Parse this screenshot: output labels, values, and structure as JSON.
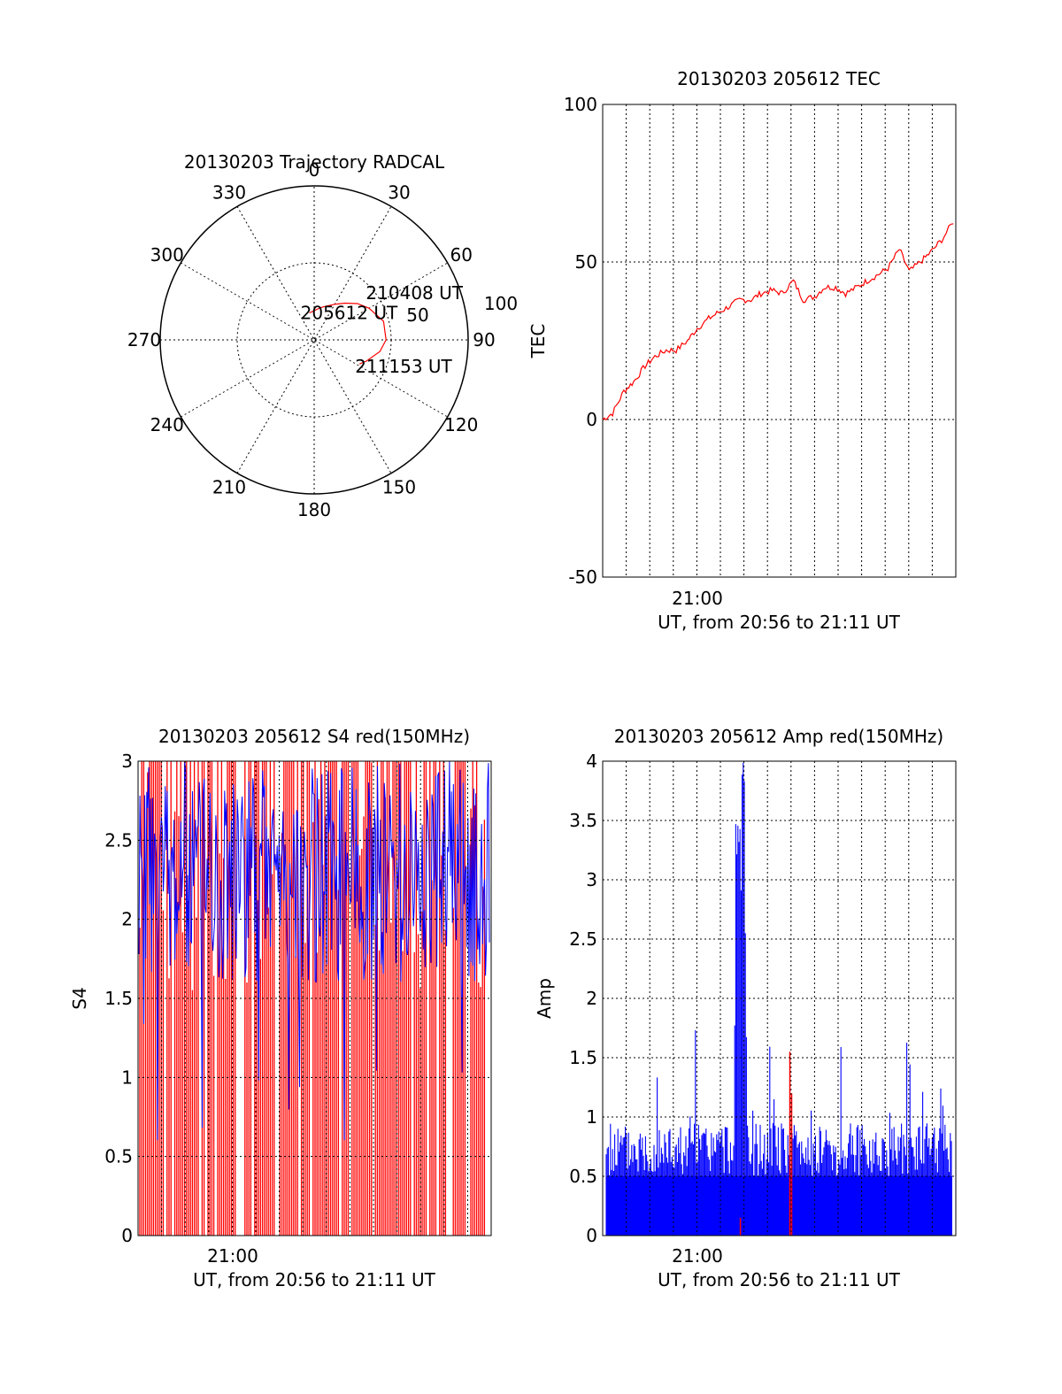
{
  "chart_data": [
    {
      "id": "polar",
      "type": "scatter",
      "title": "20130203 Trajectory RADCAL",
      "azimuth_labels": [
        "0",
        "30",
        "60",
        "90",
        "120",
        "150",
        "180",
        "210",
        "240",
        "270",
        "300",
        "330"
      ],
      "radial_labels": [
        "50",
        "100"
      ],
      "trajectory": {
        "color": "#ff0000",
        "points": [
          [
            -10,
            74
          ],
          [
            0,
            73
          ],
          [
            10,
            71
          ],
          [
            20,
            69
          ],
          [
            30,
            66
          ],
          [
            40,
            62
          ],
          [
            50,
            57
          ],
          [
            60,
            53
          ],
          [
            75,
            48
          ],
          [
            90,
            48
          ],
          [
            100,
            51
          ],
          [
            112,
            57
          ],
          [
            118,
            60
          ]
        ],
        "start_label": "205612 UT",
        "mid_label": "210408 UT",
        "end_label": "211153 UT",
        "start_index": 0,
        "mid_index": 8,
        "end_index": 12
      }
    },
    {
      "id": "tec",
      "type": "line",
      "title": "20130203 205612 TEC",
      "xlabel": "UT, from 20:56 to 21:11 UT",
      "ylabel": "TEC",
      "xlim": [
        20.933,
        21.183
      ],
      "ylim": [
        -50,
        100
      ],
      "yticks": [
        "100",
        "50",
        "0",
        "-50"
      ],
      "xtick_label": "21:00",
      "grid": true,
      "series": [
        {
          "color": "#ff0000",
          "x": [
            20.933,
            20.94,
            20.948,
            20.955,
            20.963,
            20.97,
            20.978,
            20.985,
            20.993,
            21.0,
            21.008,
            21.015,
            21.023,
            21.03,
            21.038,
            21.045,
            21.053,
            21.06,
            21.068,
            21.075,
            21.083,
            21.09,
            21.098,
            21.105,
            21.113,
            21.12,
            21.128,
            21.135,
            21.143,
            21.15,
            21.158,
            21.165,
            21.173,
            21.183
          ],
          "y": [
            0,
            2,
            9,
            12,
            17,
            20,
            22,
            22,
            25,
            29,
            32,
            34,
            36,
            38,
            38,
            40,
            41,
            40,
            44,
            38,
            39,
            42,
            42,
            40,
            42,
            44,
            46,
            48,
            54,
            47,
            50,
            53,
            57,
            64
          ]
        }
      ]
    },
    {
      "id": "s4",
      "type": "line",
      "title": "20130203 205612 S4 red(150MHz)",
      "xlabel": "UT, from 20:56 to 21:11 UT",
      "ylabel": "S4",
      "xlim": [
        20.933,
        21.183
      ],
      "ylim": [
        0,
        3
      ],
      "yticks": [
        "3",
        "2.5",
        "2",
        "1.5",
        "1",
        "0.5",
        "0"
      ],
      "xtick_label": "21:00",
      "grid": true,
      "series": [
        {
          "color": "#ff0000",
          "note": "dense vertical spikes between 0 and 3"
        },
        {
          "color": "#0000ff",
          "note": "dense noisy band mostly between 1.5 and 3, dips to 0.5"
        }
      ]
    },
    {
      "id": "amp",
      "type": "line",
      "title": "20130203 205612 Amp red(150MHz)",
      "xlabel": "UT, from 20:56 to 21:11 UT",
      "ylabel": "Amp",
      "xlim": [
        20.933,
        21.183
      ],
      "ylim": [
        0,
        4
      ],
      "yticks": [
        "4",
        "3.5",
        "3",
        "2.5",
        "2",
        "1.5",
        "1",
        "0.5",
        "0"
      ],
      "xtick_label": "21:00",
      "grid": true,
      "series": [
        {
          "color": "#0000ff",
          "note": "noisy band 0 to ~1, peak ~4 near 21:02"
        },
        {
          "color": "#ff0000",
          "note": "small red spikes near 21:02 and ~21:05 reaching ~1.5"
        }
      ]
    }
  ]
}
